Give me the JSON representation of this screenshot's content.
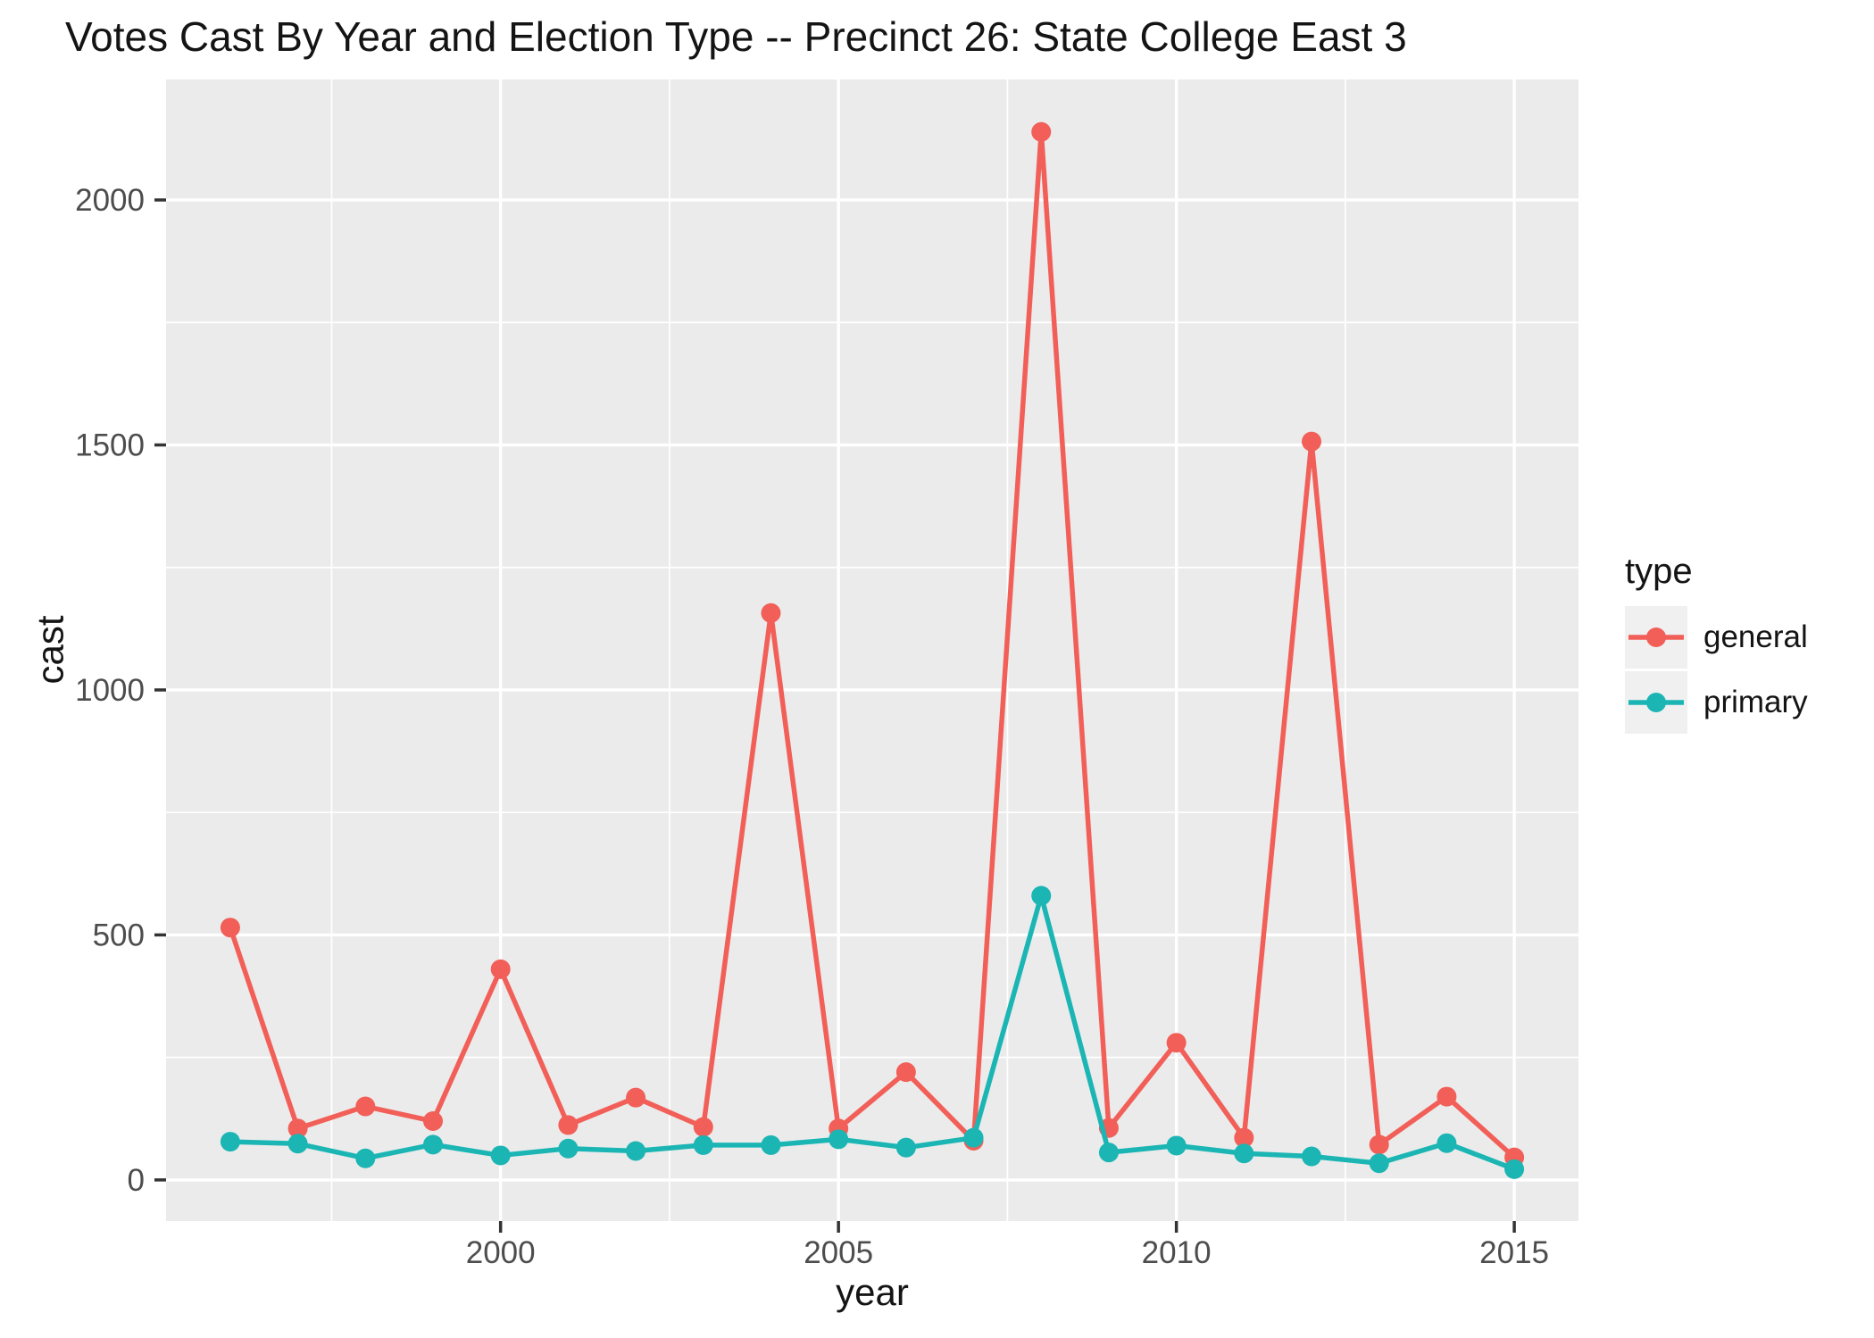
{
  "title": "Votes Cast By Year and Election Type -- Precinct 26: State College East 3",
  "chart_data": {
    "type": "line",
    "title": "Votes Cast By Year and Election Type -- Precinct 26: State College East 3",
    "xlabel": "year",
    "ylabel": "cast",
    "x": [
      1996,
      1997,
      1998,
      1999,
      2000,
      2001,
      2002,
      2003,
      2004,
      2005,
      2006,
      2007,
      2008,
      2009,
      2010,
      2011,
      2012,
      2013,
      2014,
      2015
    ],
    "series": [
      {
        "name": "general",
        "color": "#F15F58",
        "values": [
          515,
          105,
          150,
          120,
          430,
          112,
          168,
          108,
          1157,
          105,
          220,
          80,
          2139,
          106,
          280,
          86,
          1507,
          72,
          170,
          46
        ]
      },
      {
        "name": "primary",
        "color": "#1BB5B4",
        "values": [
          78,
          74,
          44,
          72,
          50,
          64,
          59,
          71,
          71,
          83,
          66,
          86,
          580,
          56,
          70,
          54,
          48,
          34,
          75,
          22
        ]
      }
    ],
    "x_ticks": [
      2000,
      2005,
      2010,
      2015
    ],
    "y_ticks": [
      0,
      500,
      1000,
      1500,
      2000
    ],
    "x_minor_gridlines": [
      1997.5,
      2002.5,
      2007.5,
      2012.5
    ],
    "y_minor_gridlines": [
      250,
      750,
      1250,
      1750
    ],
    "xlim": [
      1995.05,
      2015.95
    ],
    "ylim": [
      -84,
      2246
    ],
    "grid": "on",
    "panel_background": "#EBEBEB",
    "gridline_color": "#FFFFFF",
    "tick_mark_color": "#333333",
    "tick_label_color": "#4D4D4D",
    "legend": {
      "title": "type",
      "position": "right",
      "entries": [
        {
          "label": "general"
        },
        {
          "label": "primary"
        }
      ]
    }
  }
}
